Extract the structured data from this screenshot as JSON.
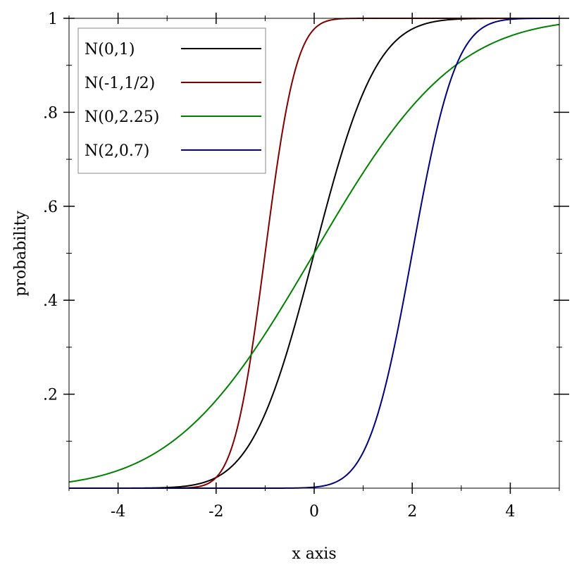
{
  "chart_data": {
    "type": "line",
    "title": "",
    "xlabel": "x axis",
    "ylabel": "probability",
    "xlim": [
      -5,
      5
    ],
    "ylim": [
      0,
      1
    ],
    "x_ticks": [
      {
        "value": -4,
        "label": "-4"
      },
      {
        "value": -2,
        "label": "-2"
      },
      {
        "value": 0,
        "label": "0"
      },
      {
        "value": 2,
        "label": "2"
      },
      {
        "value": 4,
        "label": "4"
      }
    ],
    "x_minor_ticks": [
      -5,
      -3,
      -1,
      1,
      3,
      5
    ],
    "y_ticks": [
      {
        "value": 0.2,
        "label": ".2"
      },
      {
        "value": 0.4,
        "label": ".4"
      },
      {
        "value": 0.6,
        "label": ".6"
      },
      {
        "value": 0.8,
        "label": ".8"
      },
      {
        "value": 1.0,
        "label": "1"
      }
    ],
    "y_minor_ticks": [
      0.1,
      0.3,
      0.5,
      0.7,
      0.9
    ],
    "grid": false,
    "legend_position": "top-left",
    "series": [
      {
        "name": "N(0,1)",
        "mean": 0,
        "sd": 1,
        "color": "#000000"
      },
      {
        "name": "N(-1,1/2)",
        "mean": -1,
        "sd": 0.5,
        "color": "#800000"
      },
      {
        "name": "N(0,2.25)",
        "mean": 0,
        "sd": 2.25,
        "color": "#008000"
      },
      {
        "name": "N(2,0.7)",
        "mean": 2,
        "sd": 0.7,
        "color": "#000080"
      }
    ]
  }
}
